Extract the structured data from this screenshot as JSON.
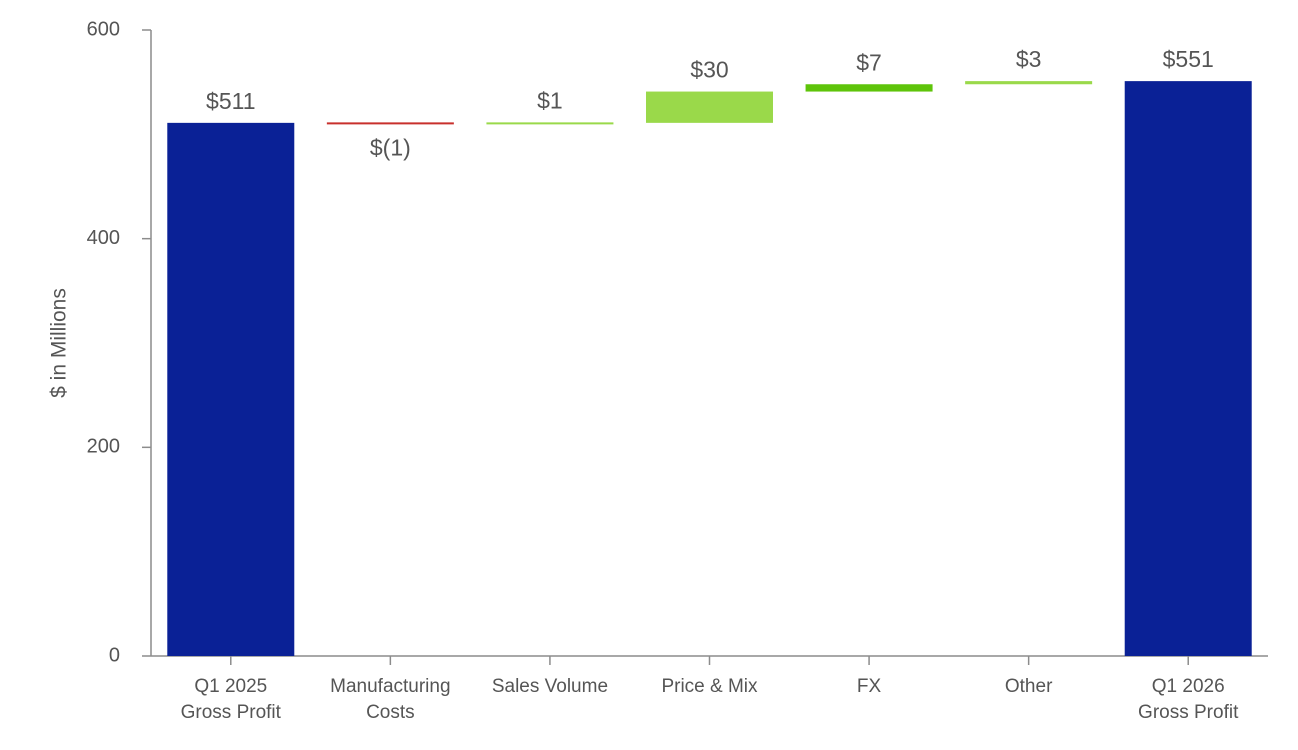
{
  "chart_data": {
    "type": "waterfall",
    "ylabel": "$ in Millions",
    "ylim": [
      0,
      600
    ],
    "yticks": [
      0,
      200,
      400,
      600
    ],
    "grid": false,
    "legend": "none",
    "colors": {
      "total": "#0a2196",
      "increase": "#9ad94a",
      "increase_strong": "#5ec40a",
      "decrease": "#c8302c"
    },
    "steps": [
      {
        "category": [
          "Q1 2025",
          "Gross Profit"
        ],
        "kind": "total",
        "start": 0,
        "end": 511,
        "label": "$511",
        "color_key": "total"
      },
      {
        "category": [
          "Manufacturing",
          "Costs"
        ],
        "kind": "decrease",
        "start": 511,
        "end": 510,
        "label": "$(1)",
        "color_key": "decrease"
      },
      {
        "category": [
          "Sales Volume"
        ],
        "kind": "increase",
        "start": 510,
        "end": 511,
        "label": "$1",
        "color_key": "increase"
      },
      {
        "category": [
          "Price & Mix"
        ],
        "kind": "increase",
        "start": 511,
        "end": 541,
        "label": "$30",
        "color_key": "increase"
      },
      {
        "category": [
          "FX"
        ],
        "kind": "increase",
        "start": 541,
        "end": 548,
        "label": "$7",
        "color_key": "increase_strong"
      },
      {
        "category": [
          "Other"
        ],
        "kind": "increase",
        "start": 548,
        "end": 551,
        "label": "$3",
        "color_key": "increase"
      },
      {
        "category": [
          "Q1 2026",
          "Gross Profit"
        ],
        "kind": "total",
        "start": 0,
        "end": 551,
        "label": "$551",
        "color_key": "total"
      }
    ]
  }
}
